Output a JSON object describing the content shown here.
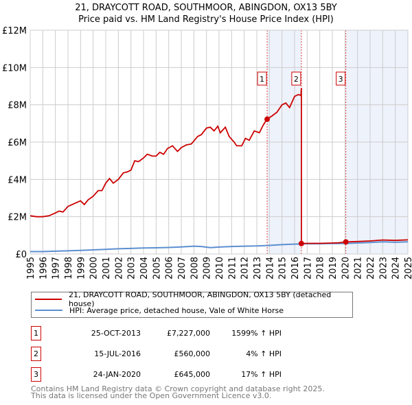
{
  "title_line1": "21, DRAYCOTT ROAD, SOUTHMOOR, ABINGDON, OX13 5BY",
  "title_line2": "Price paid vs. HM Land Registry's House Price Index (HPI)",
  "legend": {
    "property": "21, DRAYCOTT ROAD, SOUTHMOOR, ABINGDON, OX13 5BY (detached house)",
    "hpi": "HPI: Average price, detached house, Vale of White Horse"
  },
  "sales": [
    {
      "num": "1",
      "date": "25-OCT-2013",
      "price": "£7,227,000",
      "hpi": "1599% ↑ HPI"
    },
    {
      "num": "2",
      "date": "15-JUL-2016",
      "price": "£560,000",
      "hpi": "4% ↑ HPI"
    },
    {
      "num": "3",
      "date": "24-JAN-2020",
      "price": "£645,000",
      "hpi": "17% ↑ HPI"
    }
  ],
  "footer_line1": "Contains HM Land Registry data © Crown copyright and database right 2025.",
  "footer_line2": "This data is licensed under the Open Government Licence v3.0.",
  "colors": {
    "property": "#cc0000",
    "hpi": "#5b8fd0",
    "shade": "#eef2fb",
    "grid": "#cccccc"
  },
  "chart_data": {
    "type": "line",
    "xlim": [
      1995,
      2025
    ],
    "ylim": [
      0,
      12
    ],
    "y_unit": "£M",
    "yticks": [
      0,
      2,
      4,
      6,
      8,
      10,
      12
    ],
    "ytick_labels": [
      "£0",
      "£2M",
      "£4M",
      "£6M",
      "£8M",
      "£10M",
      "£12M"
    ],
    "xticks": [
      "1995",
      "1996",
      "1997",
      "1998",
      "1999",
      "2000",
      "2001",
      "2002",
      "2003",
      "2004",
      "2005",
      "2006",
      "2007",
      "2008",
      "2009",
      "2010",
      "2011",
      "2012",
      "2013",
      "2014",
      "2015",
      "2016",
      "2017",
      "2018",
      "2019",
      "2020",
      "2021",
      "2022",
      "2023",
      "2024",
      "2025"
    ],
    "shaded_ranges": [
      [
        2013.82,
        2016.54
      ],
      [
        2020.07,
        2025
      ]
    ],
    "sale_markers": [
      {
        "label": "1",
        "x": 2013.82,
        "y": 7.227
      },
      {
        "label": "2",
        "x": 2016.54,
        "y": 0.56
      },
      {
        "label": "3",
        "x": 2020.07,
        "y": 0.645
      }
    ],
    "series": [
      {
        "name": "property",
        "points": [
          [
            1995,
            2.05
          ],
          [
            1995.5,
            2.0
          ],
          [
            1996,
            2.0
          ],
          [
            1996.5,
            2.05
          ],
          [
            1997,
            2.2
          ],
          [
            1997.3,
            2.3
          ],
          [
            1997.6,
            2.25
          ],
          [
            1998,
            2.55
          ],
          [
            1998.5,
            2.7
          ],
          [
            1999,
            2.85
          ],
          [
            1999.3,
            2.65
          ],
          [
            1999.6,
            2.9
          ],
          [
            2000,
            3.1
          ],
          [
            2000.4,
            3.4
          ],
          [
            2000.7,
            3.4
          ],
          [
            2001,
            3.8
          ],
          [
            2001.3,
            4.05
          ],
          [
            2001.6,
            3.8
          ],
          [
            2002,
            4.0
          ],
          [
            2002.4,
            4.35
          ],
          [
            2002.7,
            4.4
          ],
          [
            2003,
            4.5
          ],
          [
            2003.3,
            5.0
          ],
          [
            2003.6,
            4.95
          ],
          [
            2004,
            5.15
          ],
          [
            2004.3,
            5.35
          ],
          [
            2004.7,
            5.25
          ],
          [
            2005,
            5.25
          ],
          [
            2005.3,
            5.45
          ],
          [
            2005.6,
            5.35
          ],
          [
            2005.9,
            5.65
          ],
          [
            2006.3,
            5.8
          ],
          [
            2006.7,
            5.5
          ],
          [
            2007,
            5.7
          ],
          [
            2007.4,
            5.85
          ],
          [
            2007.8,
            5.9
          ],
          [
            2008.3,
            6.3
          ],
          [
            2008.6,
            6.4
          ],
          [
            2009,
            6.75
          ],
          [
            2009.3,
            6.8
          ],
          [
            2009.6,
            6.6
          ],
          [
            2009.9,
            6.85
          ],
          [
            2010.1,
            6.5
          ],
          [
            2010.5,
            6.8
          ],
          [
            2010.8,
            6.3
          ],
          [
            2011.2,
            6.0
          ],
          [
            2011.4,
            5.8
          ],
          [
            2011.8,
            5.8
          ],
          [
            2012.1,
            6.2
          ],
          [
            2012.4,
            6.1
          ],
          [
            2012.8,
            6.6
          ],
          [
            2013.2,
            6.5
          ],
          [
            2013.5,
            6.9
          ],
          [
            2013.8,
            7.227
          ],
          [
            2014.2,
            7.4
          ],
          [
            2014.6,
            7.6
          ],
          [
            2015,
            8.0
          ],
          [
            2015.3,
            8.1
          ],
          [
            2015.6,
            7.85
          ],
          [
            2016,
            8.45
          ],
          [
            2016.3,
            8.55
          ],
          [
            2016.5,
            8.5
          ],
          [
            2016.54,
            8.9
          ],
          [
            2016.54,
            0.56
          ],
          [
            2017,
            0.57
          ],
          [
            2018,
            0.57
          ],
          [
            2019,
            0.59
          ],
          [
            2019.5,
            0.6
          ],
          [
            2020.07,
            0.645
          ],
          [
            2021,
            0.67
          ],
          [
            2022,
            0.7
          ],
          [
            2023,
            0.75
          ],
          [
            2024,
            0.73
          ],
          [
            2025,
            0.76
          ]
        ]
      },
      {
        "name": "hpi",
        "points": [
          [
            1995,
            0.13
          ],
          [
            1996,
            0.13
          ],
          [
            1997,
            0.15
          ],
          [
            1998,
            0.17
          ],
          [
            1999,
            0.19
          ],
          [
            2000,
            0.22
          ],
          [
            2001,
            0.25
          ],
          [
            2002,
            0.28
          ],
          [
            2003,
            0.3
          ],
          [
            2004,
            0.32
          ],
          [
            2005,
            0.33
          ],
          [
            2006,
            0.35
          ],
          [
            2007,
            0.38
          ],
          [
            2008,
            0.42
          ],
          [
            2008.6,
            0.4
          ],
          [
            2009.3,
            0.34
          ],
          [
            2010,
            0.37
          ],
          [
            2011,
            0.4
          ],
          [
            2012,
            0.42
          ],
          [
            2013,
            0.43
          ],
          [
            2014,
            0.46
          ],
          [
            2015,
            0.5
          ],
          [
            2016.5,
            0.54
          ],
          [
            2017,
            0.55
          ],
          [
            2018,
            0.55
          ],
          [
            2019,
            0.56
          ],
          [
            2020,
            0.56
          ],
          [
            2021,
            0.59
          ],
          [
            2022,
            0.62
          ],
          [
            2023,
            0.65
          ],
          [
            2024,
            0.63
          ],
          [
            2025,
            0.65
          ]
        ]
      }
    ]
  }
}
